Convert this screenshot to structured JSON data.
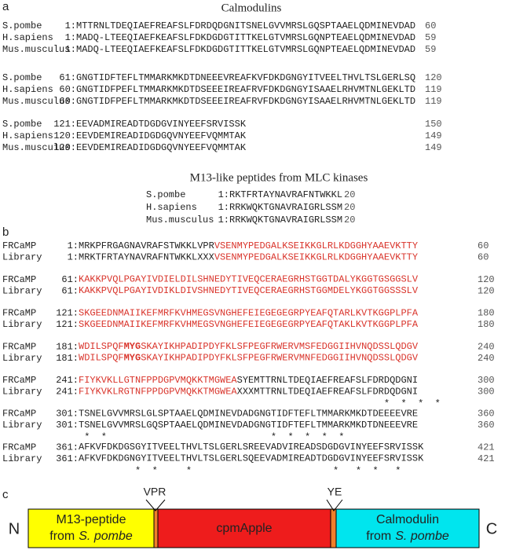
{
  "panel_a": {
    "label": "a",
    "title": "Calmodulins",
    "blocks": [
      [
        {
          "name": "S.pombe",
          "start": "1:",
          "seq": "MTTRNLTDEQIAEFREAFSLFDRDQDGNITSNELGVVMRSLGQSPTAAELQDMINEVDAD",
          "end": 60
        },
        {
          "name": "H.sapiens",
          "start": "1:",
          "seq": "MADQ-LTEEQIAEFKEAFSLFDKDGDGTITTKELGTVMRSLGQNPTEAELQDMINEVDAD",
          "end": 59
        },
        {
          "name": "Mus.musculus",
          "start": "1:",
          "seq": "MADQ-LTEEQIAEFKEAFSLFDKDGDGTITTKELGTVMRSLGQNPTEAELQDMINEVDAD",
          "end": 59
        }
      ],
      [
        {
          "name": "S.pombe",
          "start": "61:",
          "seq": "GNGTIDFTEFLTMMARKMKDTDNEEEVREAFKVFDKDGNGYITVEELTHVLTSLGERLSQ",
          "end": 120
        },
        {
          "name": "H.sapiens",
          "start": "60:",
          "seq": "GNGTIDFPEFLTMMARKMKDTDSEEEIREAFRVFDKDGNGYISAAELRHVMTNLGEKLTD",
          "end": 119
        },
        {
          "name": "Mus.musculus",
          "start": "60:",
          "seq": "GNGTIDFPEFLTMMARKMKDTDSEEEIREAFRVFDKDGNGYISAAELRHVMTNLGEKLTD",
          "end": 119
        }
      ],
      [
        {
          "name": "S.pombe",
          "start": "121:",
          "seq": "EEVADMIREADTDGDGVINYEEFSRVISSK",
          "end": 150
        },
        {
          "name": "H.sapiens",
          "start": "120:",
          "seq": "EEVDEMIREADIDGDGQVNYEEFVQMMTAK",
          "end": 149
        },
        {
          "name": "Mus.musculus",
          "start": "120:",
          "seq": "EEVDEMIREADIDGDGQVNYEEFVQMMTAK",
          "end": 149
        }
      ]
    ],
    "peptide_title": "M13-like peptides from MLC kinases",
    "peptides": [
      {
        "name": "S.pombe",
        "start": "1:",
        "seq": "RKTFRTAYNAVRAFNTWKKL",
        "end": 20
      },
      {
        "name": "H.sapiens",
        "start": "1:",
        "seq": "RRKWQKTGNAVRAIGRLSSM",
        "end": 20
      },
      {
        "name": "Mus.musculus",
        "start": "1:",
        "seq": "RRKWQKTGNAVRAIGRLSSM",
        "end": 20
      }
    ]
  },
  "panel_b": {
    "label": "b",
    "colors": {
      "black": "#222222",
      "red": "#d9342b"
    },
    "blocks": [
      {
        "rows": [
          {
            "name": "FRCaMP",
            "start": "1:",
            "segments": [
              {
                "text": "MRKPFRGAGNAVRAFSTWKKLVPR",
                "color": "black"
              },
              {
                "text": "VSENMYPEDGALKSEIKKGLRLKDGGHYAAEVKTTY",
                "color": "red"
              }
            ],
            "end": 60
          },
          {
            "name": "Library",
            "start": "1:",
            "segments": [
              {
                "text": "MRKTFRTAYNAVRAFNTWKKLXXX",
                "color": "black"
              },
              {
                "text": "VSENMYPEDGALKSEIKKGLRLKDGGHYAAEVKTTY",
                "color": "red"
              }
            ],
            "end": 60
          }
        ]
      },
      {
        "rows": [
          {
            "name": "FRCaMP",
            "start": "61:",
            "segments": [
              {
                "text": "KAKKPVQLPGAYIVDIELDILSHNEDYTIVEQCERAEGRHSTGGTDALYKGGTGSGGSLV",
                "color": "red"
              }
            ],
            "end": 120
          },
          {
            "name": "Library",
            "start": "61:",
            "segments": [
              {
                "text": "KAKKPVQLPGAYIVDIKLDIVSHNEDYTIVEQCERAEGRHSTGGMDELYKGGTGGSSSLV",
                "color": "red"
              }
            ],
            "end": 120
          }
        ]
      },
      {
        "rows": [
          {
            "name": "FRCaMP",
            "start": "121:",
            "segments": [
              {
                "text": "SKGEEDNMAIIKEFMRFKVHMEGSVNGHEFEIEGEGEGRPYEAFQTARLKVTKGGPLPFA",
                "color": "red"
              }
            ],
            "end": 180
          },
          {
            "name": "Library",
            "start": "121:",
            "segments": [
              {
                "text": "SKGEEDNMAIIKEFMRFKVHMEGSVNGHEFEIEGEGEGRPYEAFQTAKLKVTKGGPLPFA",
                "color": "red"
              }
            ],
            "end": 180
          }
        ]
      },
      {
        "rows": [
          {
            "name": "FRCaMP",
            "start": "181:",
            "segments": [
              {
                "text": "WDILSPQF",
                "color": "red"
              },
              {
                "text": "MYG",
                "color": "red",
                "bold": true
              },
              {
                "text": "SKAYIKHPADIPDYFKLSFPEGFRWERVMSFEDGGIIHVNQDSSLQDGV",
                "color": "red"
              }
            ],
            "end": 240
          },
          {
            "name": "Library",
            "start": "181:",
            "segments": [
              {
                "text": "WDILSPQF",
                "color": "red"
              },
              {
                "text": "MYG",
                "color": "red",
                "bold": true
              },
              {
                "text": "SKAYIKHPADIPDYFKLSFPEGFRWERVMNFEDGGIIHVNQDSSLQDGV",
                "color": "red"
              }
            ],
            "end": 240
          }
        ]
      },
      {
        "rows": [
          {
            "name": "FRCaMP",
            "start": "241:",
            "segments": [
              {
                "text": "FIYKVKLLGTNFPPDGPVMQKKTMGWEA",
                "color": "red"
              },
              {
                "text": "SYEMTTRNLTDEQIAEFREAFSLFDRDQDGNI",
                "color": "black"
              }
            ],
            "end": 300
          },
          {
            "name": "Library",
            "start": "241:",
            "segments": [
              {
                "text": "FIYKVKLRGTNFPPDGPVMQKKTMGWEA",
                "color": "red"
              },
              {
                "text": "XXXMTTRNLTDEQIAEFREAFSLFDRDQDGNI",
                "color": "black"
              }
            ],
            "end": 300
          }
        ],
        "stars": "                                                      *  *  *  *"
      },
      {
        "rows": [
          {
            "name": "FRCaMP",
            "start": "301:",
            "segments": [
              {
                "text": "TSNELGVVMRSLGLSPTAAELQDMINEVDADGNGTIDFTEFLTMMARKMKDTDEEEEVRE",
                "color": "black"
              }
            ],
            "end": 360
          },
          {
            "name": "Library",
            "start": "301:",
            "segments": [
              {
                "text": "TSNELGVVMRSLGQSPTAAELQDMINEVDADGNGTIDFTEFLTMMARKMKDTDNEEEVRE",
                "color": "black"
              }
            ],
            "end": 360
          }
        ],
        "stars": " *  *                             *  *  *  *  *"
      },
      {
        "rows": [
          {
            "name": "FRCaMP",
            "start": "361:",
            "segments": [
              {
                "text": "AFKVFDKDGSGYITVEELTHVLTSLGERLSREEVADVIREADSDGDGVINYEEFSRVISSK",
                "color": "black"
              }
            ],
            "end": 421
          },
          {
            "name": "Library",
            "start": "361:",
            "segments": [
              {
                "text": "AFKVFDKDGNGYITVEELTHVLTSLGERLSQEEVADMIREADTDGDGVINYEEFSRVISSK",
                "color": "black"
              }
            ],
            "end": 421
          }
        ],
        "stars": "          *  *     *                         *   *  *   *"
      }
    ]
  },
  "panel_c": {
    "label": "c",
    "n": "N",
    "c": "C",
    "vpr": "VPR",
    "ye": "YE",
    "m13_line1": "M13-peptide",
    "m13_from": "from",
    "species": "S. pombe",
    "cpm": "cpmApple",
    "cam_line1": "Calmodulin",
    "cam_from": "from"
  }
}
